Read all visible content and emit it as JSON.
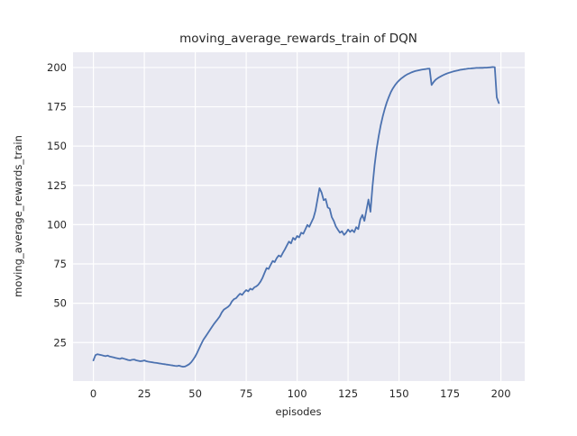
{
  "chart_data": {
    "type": "line",
    "title": "moving_average_rewards_train of DQN",
    "xlabel": "episodes",
    "ylabel": "moving_average_rewards_train",
    "x_ticks": [
      0,
      25,
      50,
      75,
      100,
      125,
      150,
      175,
      200
    ],
    "y_ticks": [
      25,
      50,
      75,
      100,
      125,
      150,
      175,
      200
    ],
    "xlim": [
      -10,
      211.7
    ],
    "ylim": [
      0.5,
      209.7
    ],
    "grid": true,
    "legend": false,
    "style": {
      "line_color": "#4C72B0",
      "plot_bg": "#EAEAF2",
      "grid_color": "#FFFFFF",
      "text_color": "#262626",
      "fig_bg": "#FFFFFF"
    },
    "series": [
      {
        "name": "moving_average_rewards_train",
        "x": [
          0,
          1,
          2,
          3,
          4,
          5,
          6,
          7,
          8,
          9,
          10,
          11,
          12,
          13,
          14,
          15,
          16,
          17,
          18,
          19,
          20,
          21,
          22,
          23,
          24,
          25,
          26,
          27,
          28,
          29,
          30,
          31,
          32,
          33,
          34,
          35,
          36,
          37,
          38,
          39,
          40,
          41,
          42,
          43,
          44,
          45,
          46,
          47,
          48,
          49,
          50,
          51,
          52,
          53,
          54,
          55,
          56,
          57,
          58,
          59,
          60,
          61,
          62,
          63,
          64,
          65,
          66,
          67,
          68,
          69,
          70,
          71,
          72,
          73,
          74,
          75,
          76,
          77,
          78,
          79,
          80,
          81,
          82,
          83,
          84,
          85,
          86,
          87,
          88,
          89,
          90,
          91,
          92,
          93,
          94,
          95,
          96,
          97,
          98,
          99,
          100,
          101,
          102,
          103,
          104,
          105,
          106,
          107,
          108,
          109,
          110,
          111,
          112,
          113,
          114,
          115,
          116,
          117,
          118,
          119,
          120,
          121,
          122,
          123,
          124,
          125,
          126,
          127,
          128,
          129,
          130,
          131,
          132,
          133,
          134,
          135,
          136,
          137,
          138,
          139,
          140,
          141,
          142,
          143,
          144,
          145,
          146,
          147,
          148,
          149,
          150,
          151,
          152,
          153,
          154,
          155,
          156,
          157,
          158,
          159,
          160,
          161,
          162,
          163,
          164,
          165,
          166,
          167,
          168,
          169,
          170,
          171,
          172,
          173,
          174,
          175,
          176,
          177,
          178,
          179,
          180,
          181,
          182,
          183,
          184,
          185,
          186,
          187,
          188,
          189,
          190,
          191,
          192,
          193,
          194,
          195,
          196,
          197,
          198,
          199
        ],
        "y": [
          13.6,
          17.0,
          17.6,
          17.3,
          17.0,
          16.6,
          16.3,
          16.7,
          16.1,
          15.8,
          15.5,
          15.2,
          14.9,
          14.6,
          15.1,
          14.7,
          14.3,
          13.9,
          13.7,
          14.0,
          14.2,
          13.7,
          13.4,
          13.1,
          13.3,
          13.6,
          13.1,
          12.8,
          12.6,
          12.4,
          12.2,
          12.0,
          11.8,
          11.6,
          11.4,
          11.2,
          11.0,
          10.8,
          10.6,
          10.4,
          10.2,
          10.0,
          10.3,
          9.9,
          9.6,
          9.8,
          10.4,
          11.2,
          12.5,
          14.2,
          16.2,
          18.6,
          21.5,
          24.3,
          26.8,
          28.7,
          30.6,
          32.6,
          34.6,
          36.5,
          38.2,
          39.8,
          41.6,
          44.2,
          45.9,
          46.8,
          47.6,
          48.9,
          51.2,
          52.6,
          53.2,
          54.7,
          56.1,
          55.3,
          57.0,
          58.4,
          57.6,
          59.3,
          58.6,
          60.1,
          60.8,
          61.9,
          63.7,
          66.2,
          69.3,
          72.4,
          71.8,
          74.5,
          76.9,
          76.2,
          78.8,
          80.4,
          79.6,
          82.1,
          84.3,
          86.9,
          89.2,
          88.1,
          91.6,
          90.4,
          92.8,
          91.9,
          94.9,
          94.2,
          96.9,
          99.8,
          98.6,
          101.5,
          104.3,
          108.9,
          116.2,
          123.2,
          120.4,
          115.6,
          116.3,
          111.0,
          110.2,
          104.8,
          102.3,
          98.9,
          96.8,
          94.9,
          95.8,
          93.5,
          94.8,
          96.9,
          95.4,
          96.6,
          95.2,
          98.4,
          97.2,
          103.3,
          106.2,
          102.4,
          109.1,
          116.0,
          108.2,
          124.5,
          137.8,
          148.0,
          156.2,
          163.0,
          168.8,
          173.7,
          177.8,
          181.3,
          184.3,
          186.7,
          188.7,
          190.3,
          191.7,
          192.9,
          193.9,
          194.8,
          195.6,
          196.2,
          196.8,
          197.3,
          197.7,
          198.0,
          198.3,
          198.6,
          198.8,
          199.0,
          199.2,
          199.3,
          188.9,
          190.8,
          192.2,
          193.2,
          194.0,
          194.7,
          195.3,
          195.9,
          196.4,
          196.8,
          197.2,
          197.6,
          197.9,
          198.2,
          198.5,
          198.7,
          198.9,
          199.1,
          199.3,
          199.4,
          199.5,
          199.6,
          199.7,
          199.7,
          199.8,
          199.8,
          199.9,
          199.9,
          200.0,
          200.1,
          200.3,
          200.2,
          181.0,
          177.4
        ]
      }
    ]
  }
}
